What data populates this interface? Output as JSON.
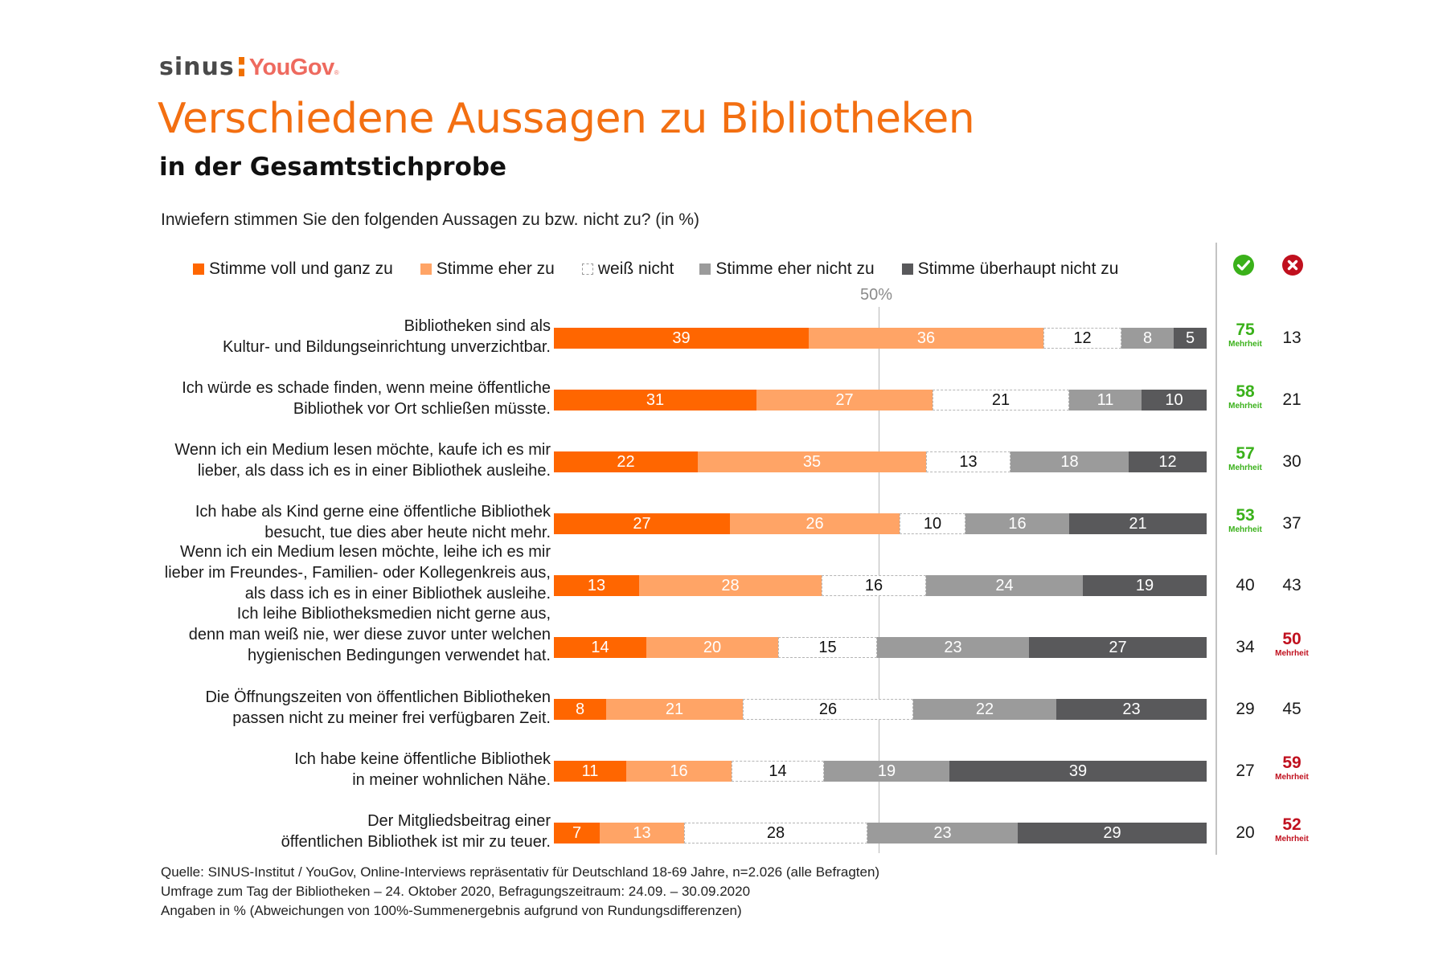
{
  "header": {
    "logo_left": "sinus",
    "logo_right": "YouGov",
    "logo_mark": "®",
    "title": "Verschiedene Aussagen zu Bibliotheken",
    "subtitle": "in der Gesamtstichprobe",
    "question": "Inwiefern stimmen Sie den folgenden Aussagen zu bzw. nicht zu? (in %)"
  },
  "icons": {
    "agree": "check-circle",
    "disagree": "x-circle"
  },
  "colors": {
    "strong_agree": "#ff6600",
    "agree": "#ffa466",
    "dont_know": "#ffffff",
    "disagree": "#9b9b9b",
    "strong_disagree": "#59595b",
    "majority_agree": "#3ab11a",
    "majority_disagree": "#c0101e",
    "title": "#f36f11"
  },
  "chart_data": {
    "type": "bar",
    "orientation": "horizontal",
    "stacked": true,
    "normalized": true,
    "title": "Verschiedene Aussagen zu Bibliotheken",
    "subtitle": "in der Gesamtstichprobe",
    "xlabel": "",
    "ylabel": "",
    "reference_line": {
      "value": 50,
      "label": "50%"
    },
    "legend_position": "top",
    "legend": [
      "Stimme voll und ganz zu",
      "Stimme eher zu",
      "weiß nicht",
      "Stimme eher nicht zu",
      "Stimme überhaupt nicht zu"
    ],
    "categories": [
      [
        "Bibliotheken sind als",
        "Kultur- und Bildungseinrichtung unverzichtbar."
      ],
      [
        "Ich würde es schade finden, wenn meine öffentliche",
        "Bibliothek vor Ort schließen müsste."
      ],
      [
        "Wenn ich ein Medium lesen möchte, kaufe ich es mir",
        "lieber, als dass ich es in einer Bibliothek ausleihe."
      ],
      [
        "Ich habe als Kind gerne eine öffentliche Bibliothek",
        "besucht, tue dies aber heute nicht mehr."
      ],
      [
        "Wenn ich ein Medium lesen möchte, leihe ich es mir",
        "lieber im Freundes-, Familien- oder Kollegenkreis aus,",
        "als dass ich es in einer Bibliothek ausleihe."
      ],
      [
        "Ich leihe Bibliotheksmedien nicht gerne aus,",
        "denn man weiß nie, wer diese zuvor unter welchen",
        "hygienischen Bedingungen verwendet hat."
      ],
      [
        "Die Öffnungszeiten von öffentlichen Bibliotheken",
        "passen nicht zu meiner frei verfügbaren Zeit."
      ],
      [
        "Ich habe keine öffentliche Bibliothek",
        "in meiner wohnlichen Nähe."
      ],
      [
        "Der Mitgliedsbeitrag einer",
        "öffentlichen Bibliothek ist mir zu teuer."
      ]
    ],
    "series": [
      {
        "name": "Stimme voll und ganz zu",
        "values": [
          39,
          31,
          22,
          27,
          13,
          14,
          8,
          11,
          7
        ]
      },
      {
        "name": "Stimme eher zu",
        "values": [
          36,
          27,
          35,
          26,
          28,
          20,
          21,
          16,
          13
        ]
      },
      {
        "name": "weiß nicht",
        "values": [
          12,
          21,
          13,
          10,
          16,
          15,
          26,
          14,
          28
        ]
      },
      {
        "name": "Stimme eher nicht zu",
        "values": [
          8,
          11,
          18,
          16,
          24,
          23,
          22,
          19,
          23
        ]
      },
      {
        "name": "Stimme überhaupt nicht zu",
        "values": [
          5,
          10,
          12,
          21,
          19,
          27,
          23,
          39,
          29
        ]
      }
    ],
    "agree_totals": [
      75,
      58,
      57,
      53,
      40,
      34,
      29,
      27,
      20
    ],
    "disagree_totals": [
      13,
      21,
      30,
      37,
      43,
      50,
      45,
      59,
      52
    ],
    "majority": [
      "agree",
      "agree",
      "agree",
      "agree",
      "none",
      "disagree",
      "none",
      "disagree",
      "disagree"
    ],
    "majority_label": "Mehrheit"
  },
  "footnote": [
    "Quelle: SINUS-Institut / YouGov, Online-Interviews repräsentativ für Deutschland 18-69 Jahre, n=2.026 (alle Befragten)",
    "Umfrage zum Tag der Bibliotheken – 24. Oktober 2020, Befragungszeitraum: 24.09. – 30.09.2020",
    "Angaben in % (Abweichungen von 100%-Summenergebnis aufgrund von Rundungsdifferenzen)"
  ]
}
